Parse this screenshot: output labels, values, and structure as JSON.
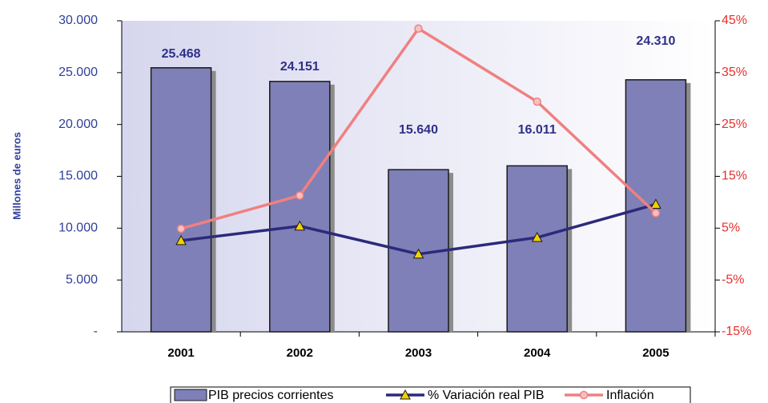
{
  "chart_data": {
    "type": "bar",
    "categories": [
      "2001",
      "2002",
      "2003",
      "2004",
      "2005"
    ],
    "y_label": "Millones de euros",
    "ylim": [
      0,
      30000
    ],
    "yticks": [
      {
        "value": 0,
        "label": "-"
      },
      {
        "value": 5000,
        "label": "5.000"
      },
      {
        "value": 10000,
        "label": "10.000"
      },
      {
        "value": 15000,
        "label": "15.000"
      },
      {
        "value": 20000,
        "label": "20.000"
      },
      {
        "value": 25000,
        "label": "25.000"
      },
      {
        "value": 30000,
        "label": "30.000"
      }
    ],
    "y2lim": [
      -15,
      45
    ],
    "y2ticks": [
      {
        "value": -15,
        "label": "-15%"
      },
      {
        "value": -5,
        "label": "-5%"
      },
      {
        "value": 5,
        "label": "5%"
      },
      {
        "value": 15,
        "label": "15%"
      },
      {
        "value": 25,
        "label": "25%"
      },
      {
        "value": 35,
        "label": "35%"
      },
      {
        "value": 45,
        "label": "45%"
      }
    ],
    "grid": false,
    "legend": "bottom",
    "series": [
      {
        "name": "PIB precios corrientes",
        "type": "bar",
        "color": "#7f80b8",
        "values": [
          25468,
          24151,
          15640,
          16011,
          24310
        ],
        "value_labels": [
          "25.468",
          "24.151",
          "15.640",
          "16.011",
          "24.310"
        ]
      },
      {
        "name": "% Variación real PIB",
        "type": "line",
        "axis": "y2",
        "color": "#2b2a7a",
        "marker": "triangle",
        "marker_color": "#f2d200",
        "values": [
          2.6,
          5.4,
          0,
          3.2,
          9.6
        ]
      },
      {
        "name": "Inflación",
        "type": "line",
        "axis": "y2",
        "color": "#f08080",
        "marker": "circle",
        "marker_color": "#f6c0c0",
        "values": [
          4.9,
          11.3,
          43.5,
          29.4,
          7.9
        ]
      }
    ]
  }
}
